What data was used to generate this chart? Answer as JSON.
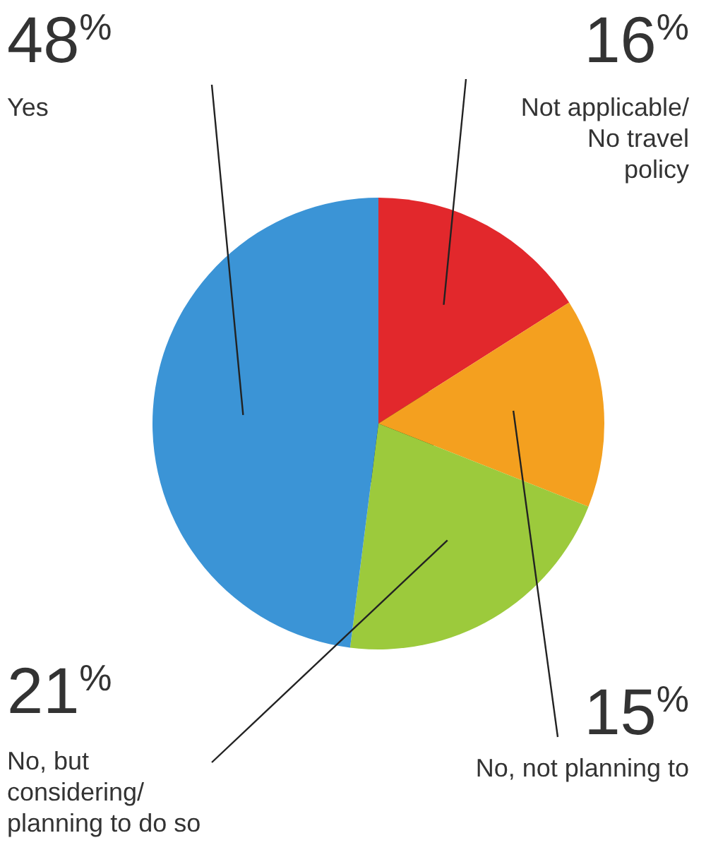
{
  "chart_data": {
    "type": "pie",
    "categories": [
      "Not applicable/ No travel policy",
      "No, not planning to",
      "No, but considering/ planning to do so",
      "Yes"
    ],
    "values": [
      16,
      15,
      21,
      48
    ],
    "colors": [
      "#e2282c",
      "#f4a01f",
      "#9cca3c",
      "#3b94d6"
    ],
    "data_labels": true,
    "value_labels": [
      "16$^{%}$",
      "15$^{%}$",
      "21$^{%}$",
      "48$^{%}$"
    ]
  }
}
